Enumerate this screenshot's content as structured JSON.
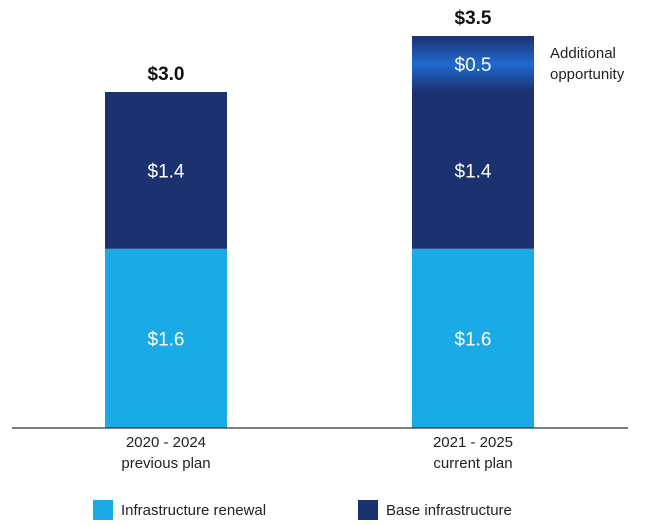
{
  "chart_data": {
    "type": "bar",
    "stacked": true,
    "categories": [
      "2020 - 2024\nprevious plan",
      "2021 - 2025\ncurrent plan"
    ],
    "category_lines": [
      [
        "2020 - 2024",
        "previous plan"
      ],
      [
        "2021 - 2025",
        "current plan"
      ]
    ],
    "series": [
      {
        "name": "Infrastructure renewal",
        "values": [
          1.6,
          1.6
        ],
        "labels": [
          "$1.6",
          "$1.6"
        ],
        "color": "#1aaae6"
      },
      {
        "name": "Base infrastructure",
        "values": [
          1.4,
          1.4
        ],
        "labels": [
          "$1.4",
          "$1.4"
        ],
        "color": "#1c3170"
      },
      {
        "name": "",
        "values": [
          0,
          0.5
        ],
        "labels": [
          "",
          "$0.5"
        ],
        "color": "#1e5fc0"
      }
    ],
    "totals": [
      "$3.0",
      "$3.5"
    ],
    "annotation": [
      "Additional",
      "opportunity"
    ],
    "ylim": [
      0,
      3.5
    ],
    "grid": false,
    "legend_position": "bottom"
  }
}
